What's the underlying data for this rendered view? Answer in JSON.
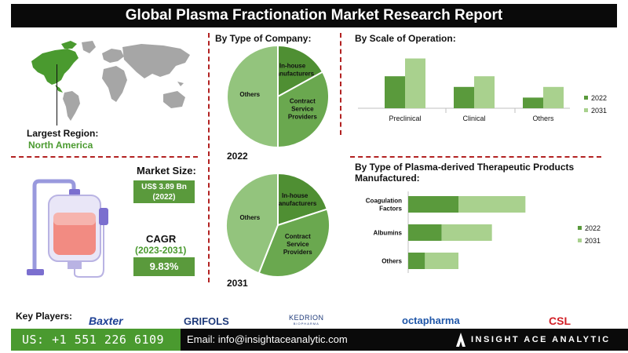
{
  "title": "Global Plasma Fractionation Market Research Report",
  "region": {
    "label": "Largest Region:",
    "value": "North America"
  },
  "market_size": {
    "label": "Market Size:",
    "value": "US$ 3.89 Bn",
    "year": "(2022)"
  },
  "cagr": {
    "label": "CAGR",
    "period": "(2023-2031)",
    "value": "9.83%"
  },
  "company_section": {
    "title": "By  Type of Company:",
    "year1": "2022",
    "year2": "2031"
  },
  "scale_section": {
    "title": "By Scale of Operation:"
  },
  "products_section": {
    "title": "By Type of Plasma-derived Therapeutic Products Manufactured:"
  },
  "key_players": {
    "label": "Key Players:",
    "names": [
      "Baxter",
      "GRIFOLS",
      "KEDRION",
      "octapharma",
      "CSL"
    ],
    "kedrion_sub": "BIOPHARMA"
  },
  "footer": {
    "phone": "US: +1 551 226 6109",
    "email": "Email: info@insightaceanalytic.com",
    "brand": "INSIGHT ACE ANALYTIC"
  },
  "colors": {
    "dark_green": "#5a9a3c",
    "light_green": "#a9d18e",
    "pie_dark": "#4f8f33",
    "pie_mid": "#6aa84f",
    "pie_light": "#93c47d",
    "accent_red": "#b22222",
    "key_green": "#4a9a2f"
  },
  "chart_data": [
    {
      "type": "pie",
      "title": "By  Type of Company:",
      "year": "2022",
      "labels": [
        "In-house Manufacturers",
        "Contract Service Providers",
        "Others"
      ],
      "display_labels": [
        [
          "In-house",
          "Manufacturers"
        ],
        [
          "Contract",
          "Service",
          "Providers"
        ],
        [
          "Others"
        ]
      ],
      "values": [
        17,
        33,
        50
      ]
    },
    {
      "type": "pie",
      "title": "By  Type of Company:",
      "year": "2031",
      "labels": [
        "In-house Manufacturers",
        "Contract Service Providers",
        "Others"
      ],
      "display_labels": [
        [
          "In-house",
          "Manufacturers"
        ],
        [
          "Contract",
          "Service",
          "Providers"
        ],
        [
          "Others"
        ]
      ],
      "values": [
        20,
        36,
        44
      ]
    },
    {
      "type": "bar",
      "title": "By Scale of Operation:",
      "categories": [
        "Preclinical",
        "Clinical",
        "Others"
      ],
      "series": [
        {
          "name": "2022",
          "values": [
            45,
            30,
            15
          ]
        },
        {
          "name": "2031",
          "values": [
            70,
            45,
            30
          ]
        }
      ],
      "ylim": [
        0,
        75
      ],
      "legend": "right",
      "grid": false
    },
    {
      "type": "bar",
      "orientation": "horizontal",
      "stacked": true,
      "title": "By Type of Plasma-derived Therapeutic Products Manufactured:",
      "categories": [
        "Coagulation Factors",
        "Albumins",
        "Others"
      ],
      "display_categories": [
        [
          "Coagulation",
          "Factors"
        ],
        [
          "Albumins"
        ],
        [
          "Others"
        ]
      ],
      "series": [
        {
          "name": "2022",
          "values": [
            60,
            40,
            20
          ]
        },
        {
          "name": "2031",
          "values": [
            80,
            60,
            40
          ]
        }
      ],
      "xlim": [
        0,
        150
      ],
      "legend": "right",
      "grid": false
    }
  ]
}
